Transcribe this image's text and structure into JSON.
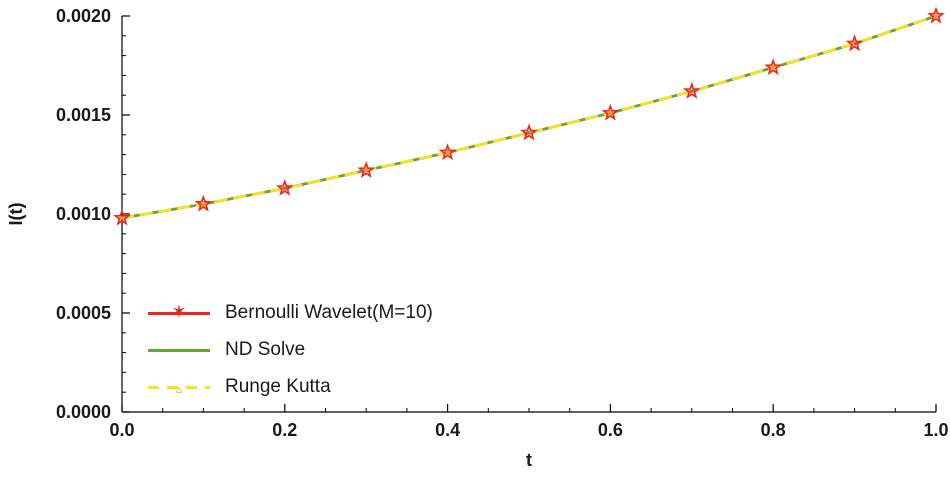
{
  "icons": {
    "star": "✶",
    "triangle": "▵"
  },
  "colors": {
    "bernoulli_red": "#e8291c",
    "ndsolve_green": "#62a73b",
    "rungekutta_yellow": "#f7e41c",
    "axis": "#000000",
    "tick_label": "#1a1a1a"
  },
  "chart_data": {
    "type": "line",
    "title": "",
    "xlabel": "t",
    "ylabel": "I(t)",
    "xlim": [
      0,
      1
    ],
    "ylim": [
      0,
      0.002
    ],
    "grid": false,
    "legend_position": "lower-left",
    "x": [
      0.0,
      0.1,
      0.2,
      0.3,
      0.4,
      0.5,
      0.6,
      0.7,
      0.8,
      0.9,
      1.0
    ],
    "series": [
      {
        "name": "Bernoulli Wavelet(M=10)",
        "color": "#e8291c",
        "style": "solid",
        "marker": "star",
        "marker_color": "#e8291c",
        "values": [
          0.00098,
          0.00105,
          0.00113,
          0.00122,
          0.00131,
          0.00141,
          0.00151,
          0.00162,
          0.00174,
          0.00186,
          0.002
        ]
      },
      {
        "name": "ND Solve",
        "color": "#62a73b",
        "style": "solid",
        "marker": "none",
        "values": [
          0.00098,
          0.00105,
          0.00113,
          0.00122,
          0.00131,
          0.00141,
          0.00151,
          0.00162,
          0.00174,
          0.00186,
          0.002
        ]
      },
      {
        "name": "Runge Kutta",
        "color": "#f7e41c",
        "style": "dashed",
        "marker": "open-triangle",
        "marker_color": "#d9c900",
        "values": [
          0.00098,
          0.00105,
          0.00113,
          0.00122,
          0.00131,
          0.00141,
          0.00151,
          0.00162,
          0.00174,
          0.00186,
          0.002
        ]
      }
    ],
    "xticks": {
      "values": [
        0,
        0.2,
        0.4,
        0.6,
        0.8,
        1.0
      ],
      "labels": [
        "0.0",
        "0.2",
        "0.4",
        "0.6",
        "0.8",
        "1.0"
      ],
      "minor_step": 0.05
    },
    "yticks": {
      "values": [
        0,
        0.0005,
        0.001,
        0.0015,
        0.002
      ],
      "labels": [
        "0.0000",
        "0.0005",
        "0.0010",
        "0.0015",
        "0.0020"
      ],
      "minor_step": 0.0001
    }
  }
}
